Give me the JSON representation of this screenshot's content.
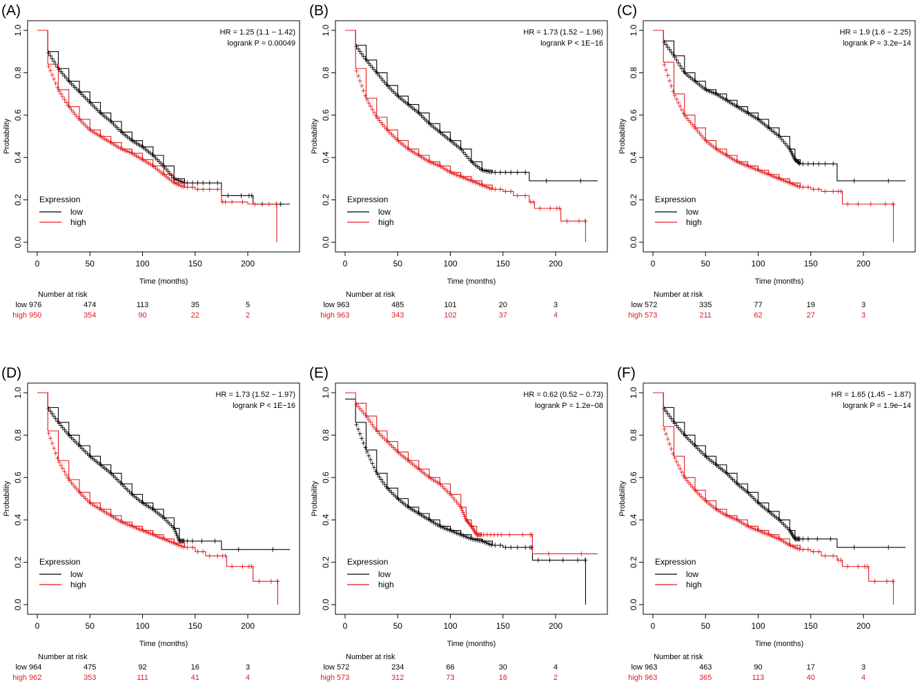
{
  "chart_data": [
    {
      "type": "line",
      "label": "(A)",
      "title": "",
      "xlabel": "Time (months)",
      "ylabel": "Probability",
      "xlim": [
        0,
        240
      ],
      "ylim": [
        0,
        1
      ],
      "xticks": [
        0,
        50,
        100,
        150,
        200
      ],
      "yticks": [
        "0.0",
        "0.2",
        "0.4",
        "0.6",
        "0.8",
        "1.0"
      ],
      "stats": [
        "HR = 1.25 (1.1 − 1.42)",
        "logrank P = 0.00049"
      ],
      "legend": {
        "title": "Expression",
        "placement": "bottom-left"
      },
      "colors": {
        "low": "#000000",
        "high": "#e41a1c"
      },
      "series": [
        {
          "name": "low",
          "x": [
            0,
            10,
            20,
            30,
            40,
            50,
            60,
            70,
            80,
            90,
            100,
            110,
            120,
            130,
            140,
            150,
            160,
            175,
            200,
            205,
            240
          ],
          "y": [
            1.0,
            0.9,
            0.82,
            0.76,
            0.71,
            0.66,
            0.61,
            0.57,
            0.52,
            0.48,
            0.45,
            0.41,
            0.36,
            0.3,
            0.28,
            0.28,
            0.28,
            0.22,
            0.22,
            0.18,
            0.18
          ]
        },
        {
          "name": "high",
          "x": [
            0,
            10,
            20,
            30,
            40,
            50,
            60,
            70,
            80,
            90,
            100,
            110,
            120,
            130,
            140,
            150,
            160,
            175,
            180,
            200,
            227,
            227.5
          ],
          "y": [
            1.0,
            0.84,
            0.72,
            0.64,
            0.58,
            0.53,
            0.5,
            0.47,
            0.44,
            0.42,
            0.39,
            0.36,
            0.32,
            0.28,
            0.26,
            0.25,
            0.25,
            0.19,
            0.19,
            0.18,
            0.18,
            0.0
          ]
        }
      ],
      "risk_table": {
        "header": "Number at risk",
        "rows": [
          {
            "label": "low",
            "values": [
              "976",
              "474",
              "113",
              "35",
              "5"
            ]
          },
          {
            "label": "high",
            "values": [
              "950",
              "354",
              "90",
              "22",
              "2"
            ]
          }
        ]
      }
    },
    {
      "type": "line",
      "label": "(B)",
      "title": "",
      "xlabel": "Time (months)",
      "ylabel": "Probability",
      "xlim": [
        0,
        240
      ],
      "ylim": [
        0,
        1
      ],
      "xticks": [
        0,
        50,
        100,
        150,
        200
      ],
      "yticks": [
        "0.0",
        "0.2",
        "0.4",
        "0.6",
        "0.8",
        "1.0"
      ],
      "stats": [
        "HR = 1.73 (1.52 − 1.96)",
        "logrank P < 1E−16"
      ],
      "legend": {
        "title": "Expression",
        "placement": "bottom-left"
      },
      "colors": {
        "low": "#000000",
        "high": "#e41a1c"
      },
      "series": [
        {
          "name": "low",
          "x": [
            0,
            10,
            20,
            30,
            40,
            50,
            60,
            70,
            80,
            90,
            100,
            110,
            120,
            130,
            140,
            150,
            160,
            175,
            240
          ],
          "y": [
            1.0,
            0.93,
            0.86,
            0.8,
            0.74,
            0.69,
            0.65,
            0.61,
            0.56,
            0.52,
            0.48,
            0.44,
            0.38,
            0.34,
            0.33,
            0.33,
            0.33,
            0.29,
            0.29
          ]
        },
        {
          "name": "high",
          "x": [
            0,
            10,
            20,
            30,
            40,
            50,
            60,
            70,
            80,
            90,
            100,
            110,
            120,
            130,
            140,
            150,
            160,
            175,
            180,
            200,
            205,
            228,
            228.5
          ],
          "y": [
            1.0,
            0.82,
            0.68,
            0.59,
            0.53,
            0.48,
            0.44,
            0.41,
            0.38,
            0.36,
            0.33,
            0.31,
            0.29,
            0.27,
            0.25,
            0.24,
            0.22,
            0.19,
            0.16,
            0.16,
            0.1,
            0.1,
            0.0
          ]
        }
      ],
      "risk_table": {
        "header": "Number at risk",
        "rows": [
          {
            "label": "low",
            "values": [
              "963",
              "485",
              "101",
              "20",
              "3"
            ]
          },
          {
            "label": "high",
            "values": [
              "963",
              "343",
              "102",
              "37",
              "4"
            ]
          }
        ]
      }
    },
    {
      "type": "line",
      "label": "(C)",
      "title": "",
      "xlabel": "Time (months)",
      "ylabel": "Probability",
      "xlim": [
        0,
        240
      ],
      "ylim": [
        0,
        1
      ],
      "xticks": [
        0,
        50,
        100,
        150,
        200
      ],
      "yticks": [
        "0.0",
        "0.2",
        "0.4",
        "0.6",
        "0.8",
        "1.0"
      ],
      "stats": [
        "HR = 1.9 (1.6 − 2.25)",
        "logrank P = 3.2e−14"
      ],
      "legend": {
        "title": "Expression",
        "placement": "bottom-left"
      },
      "colors": {
        "low": "#000000",
        "high": "#e41a1c"
      },
      "series": [
        {
          "name": "low",
          "x": [
            0,
            10,
            20,
            30,
            40,
            50,
            60,
            70,
            80,
            90,
            100,
            110,
            120,
            130,
            135,
            140,
            150,
            160,
            175,
            240
          ],
          "y": [
            1.0,
            0.95,
            0.88,
            0.8,
            0.76,
            0.72,
            0.7,
            0.67,
            0.64,
            0.61,
            0.58,
            0.54,
            0.5,
            0.44,
            0.39,
            0.37,
            0.37,
            0.37,
            0.29,
            0.29
          ]
        },
        {
          "name": "high",
          "x": [
            0,
            10,
            20,
            30,
            40,
            50,
            60,
            70,
            80,
            90,
            100,
            110,
            120,
            130,
            140,
            150,
            160,
            175,
            180,
            200,
            228,
            228.5
          ],
          "y": [
            1.0,
            0.85,
            0.7,
            0.6,
            0.54,
            0.48,
            0.44,
            0.41,
            0.38,
            0.36,
            0.34,
            0.32,
            0.3,
            0.28,
            0.26,
            0.25,
            0.24,
            0.24,
            0.18,
            0.18,
            0.18,
            0.0
          ]
        }
      ],
      "risk_table": {
        "header": "Number at risk",
        "rows": [
          {
            "label": "low",
            "values": [
              "572",
              "335",
              "77",
              "19",
              "3"
            ]
          },
          {
            "label": "high",
            "values": [
              "573",
              "211",
              "62",
              "27",
              "3"
            ]
          }
        ]
      }
    },
    {
      "type": "line",
      "label": "(D)",
      "title": "",
      "xlabel": "Time (months)",
      "ylabel": "Probability",
      "xlim": [
        0,
        240
      ],
      "ylim": [
        0,
        1
      ],
      "xticks": [
        0,
        50,
        100,
        150,
        200
      ],
      "yticks": [
        "0.0",
        "0.2",
        "0.4",
        "0.6",
        "0.8",
        "1.0"
      ],
      "stats": [
        "HR = 1.73 (1.52 − 1.97)",
        "logrank P < 1E−16"
      ],
      "legend": {
        "title": "Expression",
        "placement": "bottom-left"
      },
      "colors": {
        "low": "#000000",
        "high": "#e41a1c"
      },
      "series": [
        {
          "name": "low",
          "x": [
            0,
            10,
            20,
            30,
            40,
            50,
            60,
            70,
            80,
            90,
            100,
            110,
            120,
            130,
            135,
            140,
            150,
            175,
            240
          ],
          "y": [
            1.0,
            0.93,
            0.86,
            0.8,
            0.75,
            0.7,
            0.66,
            0.62,
            0.57,
            0.52,
            0.48,
            0.45,
            0.41,
            0.36,
            0.3,
            0.3,
            0.3,
            0.26,
            0.26
          ]
        },
        {
          "name": "high",
          "x": [
            0,
            10,
            20,
            30,
            40,
            50,
            60,
            70,
            80,
            90,
            100,
            110,
            120,
            130,
            140,
            150,
            160,
            175,
            180,
            200,
            205,
            228,
            228.5
          ],
          "y": [
            1.0,
            0.82,
            0.68,
            0.59,
            0.53,
            0.48,
            0.45,
            0.42,
            0.39,
            0.37,
            0.35,
            0.33,
            0.31,
            0.29,
            0.27,
            0.25,
            0.23,
            0.23,
            0.18,
            0.18,
            0.11,
            0.11,
            0.0
          ]
        }
      ],
      "risk_table": {
        "header": "Number at risk",
        "rows": [
          {
            "label": "low",
            "values": [
              "964",
              "475",
              "92",
              "16",
              "3"
            ]
          },
          {
            "label": "high",
            "values": [
              "962",
              "353",
              "111",
              "41",
              "4"
            ]
          }
        ]
      }
    },
    {
      "type": "line",
      "label": "(E)",
      "title": "",
      "xlabel": "Time (months)",
      "ylabel": "Probability",
      "xlim": [
        0,
        240
      ],
      "ylim": [
        0,
        1
      ],
      "xticks": [
        0,
        50,
        100,
        150,
        200
      ],
      "yticks": [
        "0.0",
        "0.2",
        "0.4",
        "0.6",
        "0.8",
        "1.0"
      ],
      "stats": [
        "HR = 0.62 (0.52 − 0.73)",
        "logrank P = 1.2e−08"
      ],
      "legend": {
        "title": "Expression",
        "placement": "bottom-left"
      },
      "colors": {
        "low": "#000000",
        "high": "#e41a1c"
      },
      "series": [
        {
          "name": "low",
          "x": [
            0,
            10,
            20,
            30,
            40,
            50,
            60,
            70,
            80,
            90,
            100,
            110,
            120,
            130,
            140,
            150,
            160,
            175,
            178,
            200,
            228,
            228.5
          ],
          "y": [
            0.97,
            0.86,
            0.73,
            0.62,
            0.55,
            0.5,
            0.46,
            0.43,
            0.4,
            0.37,
            0.35,
            0.33,
            0.31,
            0.3,
            0.28,
            0.27,
            0.27,
            0.27,
            0.21,
            0.21,
            0.21,
            0.0
          ]
        },
        {
          "name": "high",
          "x": [
            0,
            10,
            20,
            30,
            40,
            50,
            60,
            70,
            80,
            90,
            100,
            110,
            115,
            120,
            125,
            130,
            150,
            175,
            178,
            240
          ],
          "y": [
            1.0,
            0.95,
            0.89,
            0.82,
            0.77,
            0.72,
            0.68,
            0.64,
            0.6,
            0.57,
            0.52,
            0.46,
            0.4,
            0.37,
            0.33,
            0.33,
            0.33,
            0.33,
            0.24,
            0.24
          ]
        }
      ],
      "risk_table": {
        "header": "Number at risk",
        "rows": [
          {
            "label": "low",
            "values": [
              "572",
              "234",
              "66",
              "30",
              "4"
            ]
          },
          {
            "label": "high",
            "values": [
              "573",
              "312",
              "73",
              "16",
              "2"
            ]
          }
        ]
      }
    },
    {
      "type": "line",
      "label": "(F)",
      "title": "",
      "xlabel": "Time (months)",
      "ylabel": "Probability",
      "xlim": [
        0,
        240
      ],
      "ylim": [
        0,
        1
      ],
      "xticks": [
        0,
        50,
        100,
        150,
        200
      ],
      "yticks": [
        "0.0",
        "0.2",
        "0.4",
        "0.6",
        "0.8",
        "1.0"
      ],
      "stats": [
        "HR = 1.65 (1.45 − 1.87)",
        "logrank P = 1.9e−14"
      ],
      "legend": {
        "title": "Expression",
        "placement": "bottom-left"
      },
      "colors": {
        "low": "#000000",
        "high": "#e41a1c"
      },
      "series": [
        {
          "name": "low",
          "x": [
            0,
            10,
            20,
            30,
            40,
            50,
            60,
            70,
            80,
            90,
            100,
            110,
            120,
            130,
            135,
            140,
            150,
            175,
            240
          ],
          "y": [
            1.0,
            0.93,
            0.86,
            0.8,
            0.75,
            0.7,
            0.66,
            0.62,
            0.57,
            0.53,
            0.48,
            0.44,
            0.4,
            0.35,
            0.31,
            0.31,
            0.31,
            0.27,
            0.27
          ]
        },
        {
          "name": "high",
          "x": [
            0,
            10,
            20,
            30,
            40,
            50,
            60,
            70,
            80,
            90,
            100,
            110,
            120,
            130,
            140,
            150,
            160,
            175,
            180,
            200,
            205,
            228,
            228.5
          ],
          "y": [
            1.0,
            0.84,
            0.7,
            0.6,
            0.54,
            0.49,
            0.45,
            0.42,
            0.4,
            0.37,
            0.35,
            0.33,
            0.31,
            0.28,
            0.26,
            0.25,
            0.23,
            0.21,
            0.18,
            0.18,
            0.11,
            0.11,
            0.0
          ]
        }
      ],
      "risk_table": {
        "header": "Number at risk",
        "rows": [
          {
            "label": "low",
            "values": [
              "963",
              "463",
              "90",
              "17",
              "3"
            ]
          },
          {
            "label": "high",
            "values": [
              "963",
              "365",
              "113",
              "40",
              "4"
            ]
          }
        ]
      }
    }
  ]
}
